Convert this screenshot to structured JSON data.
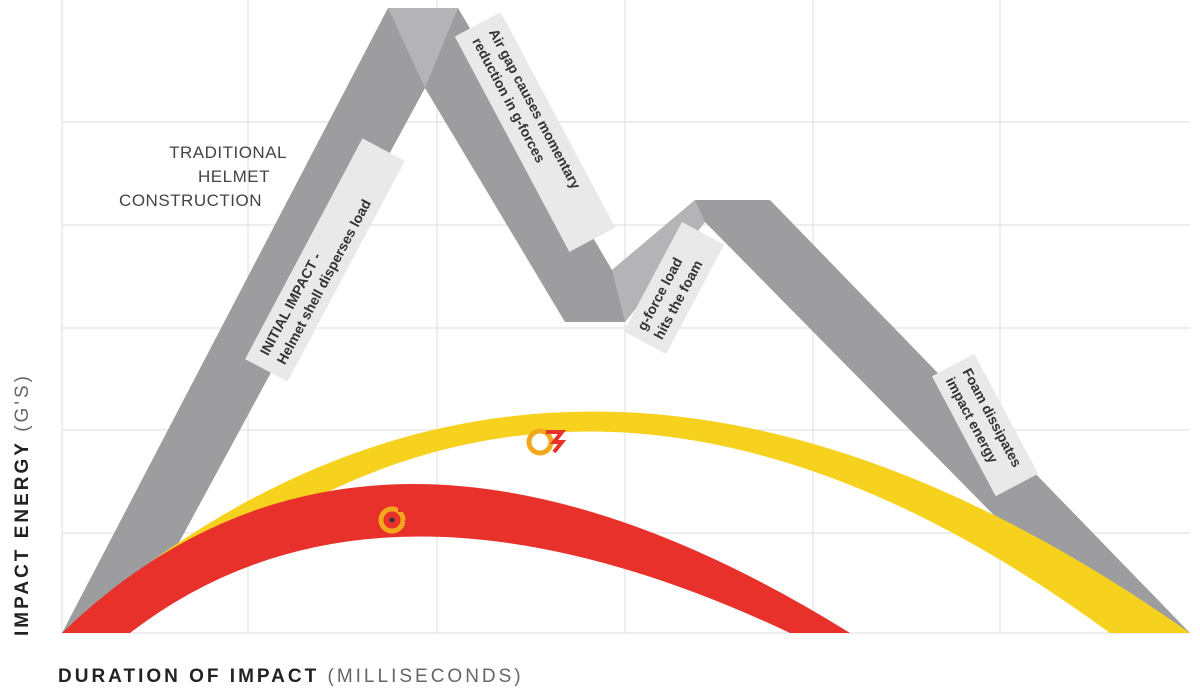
{
  "legend_label": [
    "TRADITIONAL",
    "HELMET",
    "CONSTRUCTION"
  ],
  "annotations": [
    {
      "lines": [
        "INITIAL IMPACT -",
        "Helmet shell disperses load"
      ]
    },
    {
      "lines": [
        "Air gap causes momentary",
        "reduction in g-forces"
      ]
    },
    {
      "lines": [
        "g-force load",
        "hits the foam"
      ]
    },
    {
      "lines": [
        "Foam dissipates",
        "impact energy"
      ]
    }
  ],
  "y_axis": {
    "label": "IMPACT ENERGY",
    "unit": "(G'S)"
  },
  "x_axis": {
    "label": "DURATION OF IMPACT",
    "unit": "(MILLISECONDS)"
  }
}
